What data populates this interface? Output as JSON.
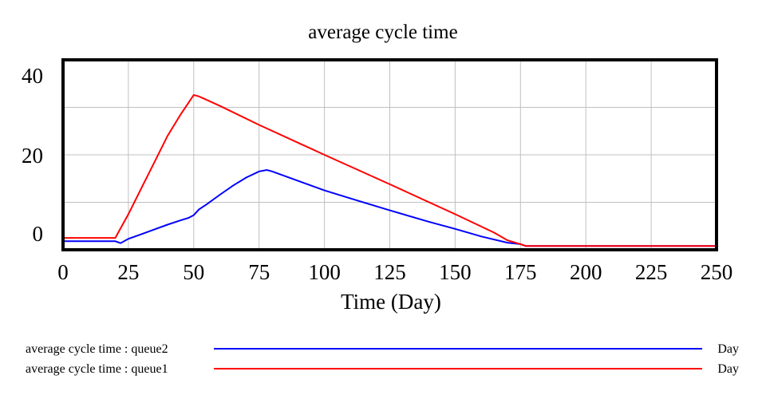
{
  "chart_data": {
    "type": "line",
    "title": "average cycle time",
    "xlabel": "Time (Day)",
    "ylabel": "",
    "xlim": [
      0,
      250
    ],
    "ylim": [
      0,
      40
    ],
    "x_ticks": [
      "0",
      "25",
      "50",
      "75",
      "100",
      "125",
      "150",
      "175",
      "200",
      "225",
      "250"
    ],
    "x_tick_values": [
      0,
      25,
      50,
      75,
      100,
      125,
      150,
      175,
      200,
      225,
      250
    ],
    "y_ticks": [
      "0",
      "20",
      "40"
    ],
    "grid": true,
    "legend_position": "bottom",
    "series": [
      {
        "name": "average cycle time : queue2",
        "unit": "Day",
        "color": "#0000ff",
        "x": [
          0,
          20,
          22,
          25,
          30,
          35,
          40,
          45,
          48,
          50,
          52,
          55,
          60,
          65,
          70,
          75,
          78,
          80,
          90,
          100,
          110,
          125,
          140,
          150,
          160,
          170,
          175,
          177,
          250
        ],
        "y": [
          1.8,
          1.8,
          1.4,
          2.3,
          3.3,
          4.3,
          5.3,
          6.2,
          6.7,
          7.3,
          8.5,
          9.6,
          11.6,
          13.5,
          15.2,
          16.5,
          16.8,
          16.5,
          14.5,
          12.5,
          10.8,
          8.3,
          5.9,
          4.4,
          2.8,
          1.5,
          1.2,
          0.8,
          0.8
        ]
      },
      {
        "name": "average cycle time : queue1",
        "unit": "Day",
        "color": "#ff0000",
        "x": [
          0,
          20,
          25,
          30,
          35,
          40,
          45,
          50,
          52,
          60,
          75,
          100,
          125,
          150,
          165,
          170,
          175,
          177,
          250
        ],
        "y": [
          2.5,
          2.5,
          7.5,
          13,
          18.5,
          24,
          28.5,
          32.6,
          32.3,
          30.3,
          26.3,
          20,
          13.8,
          7.5,
          3.6,
          2.0,
          1.2,
          0.8,
          0.8
        ]
      }
    ]
  }
}
